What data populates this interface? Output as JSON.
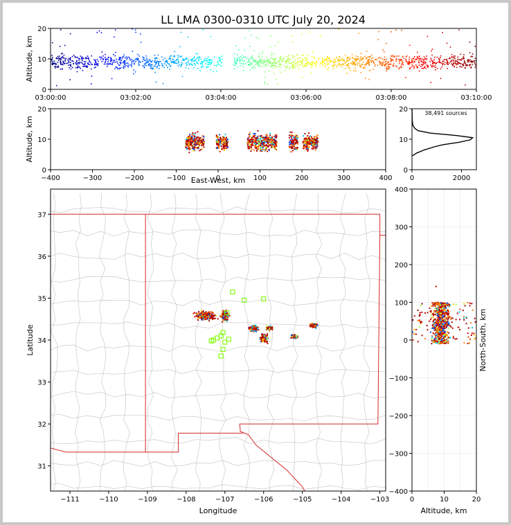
{
  "title": "LL LMA 0300-0310 UTC July 20, 2024",
  "panels": {
    "time_height": {
      "ylabel": "Altitude, km",
      "x_ticks": [
        "03:00:00",
        "03:02:00",
        "03:04:00",
        "03:06:00",
        "03:08:00",
        "03:10:00"
      ],
      "y_ticks": [
        "0",
        "10",
        "20"
      ]
    },
    "ew_height": {
      "ylabel": "Altitude, km",
      "xlabel": "East-West, km",
      "x_ticks": [
        "−400",
        "−300",
        "−200",
        "−100",
        "0",
        "100",
        "200",
        "300",
        "400"
      ],
      "y_ticks": [
        "0",
        "10",
        "20"
      ]
    },
    "histogram": {
      "annotation": "38,491 sources",
      "x_ticks": [
        "0",
        "2000"
      ],
      "y_ticks": [
        "0",
        "10",
        "20"
      ]
    },
    "plan": {
      "xlabel": "Longitude",
      "ylabel": "Latitude",
      "x_ticks": [
        "−111",
        "−110",
        "−109",
        "−108",
        "−107",
        "−106",
        "−105",
        "−104",
        "−103"
      ],
      "y_ticks": [
        "31",
        "32",
        "33",
        "34",
        "35",
        "36",
        "37"
      ]
    },
    "ns_height": {
      "xlabel": "Altitude, km",
      "ylabel": "North-South, km",
      "x_ticks": [
        "0",
        "10",
        "20"
      ],
      "y_ticks": [
        "−400",
        "−300",
        "−200",
        "−100",
        "0",
        "100",
        "200",
        "300",
        "400"
      ]
    }
  },
  "colors": {
    "state_border": "#d62728",
    "county_lines": "#c0c0c0",
    "station_marker": "#7cfc00"
  },
  "chart_data": [
    {
      "type": "scatter",
      "panel": "time_height",
      "x_range": [
        "03:00:00",
        "03:10:00"
      ],
      "ylim": [
        0,
        20
      ],
      "color_by": "time",
      "colormap": "jet",
      "altitude_band_km": [
        5,
        14
      ],
      "core_altitude_km": 9
    },
    {
      "type": "scatter",
      "panel": "ew_height",
      "xlim": [
        -400,
        400
      ],
      "ylim": [
        0,
        20
      ],
      "clusters": [
        {
          "x_center": -55,
          "x_spread": 22
        },
        {
          "x_center": 10,
          "x_spread": 14
        },
        {
          "x_center": 105,
          "x_spread": 35
        },
        {
          "x_center": 180,
          "x_spread": 10
        },
        {
          "x_center": 220,
          "x_spread": 18
        }
      ]
    },
    {
      "type": "line",
      "panel": "histogram",
      "xlim": [
        0,
        2600
      ],
      "ylim": [
        0,
        20
      ],
      "altitude_km": [
        4.5,
        5.5,
        6.5,
        7.5,
        8.2,
        9.0,
        9.8,
        10.5,
        11.2,
        12.0,
        12.8,
        13.5,
        14.5,
        16.0,
        20.0
      ],
      "source_count": [
        0,
        200,
        500,
        900,
        1250,
        1900,
        2350,
        2450,
        1800,
        750,
        250,
        120,
        40,
        10,
        0
      ]
    },
    {
      "type": "scatter",
      "panel": "plan",
      "xlim": [
        -111.5,
        -102.85
      ],
      "ylim": [
        30.4,
        37.6
      ],
      "clusters": [
        {
          "lon": -107.5,
          "lat": 34.58,
          "d_lon": 0.3,
          "d_lat": 0.12
        },
        {
          "lon": -107.0,
          "lat": 34.58,
          "d_lon": 0.12,
          "d_lat": 0.15
        },
        {
          "lon": -106.25,
          "lat": 34.28,
          "d_lon": 0.14,
          "d_lat": 0.1
        },
        {
          "lon": -106.0,
          "lat": 34.05,
          "d_lon": 0.12,
          "d_lat": 0.12
        },
        {
          "lon": -105.85,
          "lat": 34.28,
          "d_lon": 0.1,
          "d_lat": 0.06
        },
        {
          "lon": -105.2,
          "lat": 34.08,
          "d_lon": 0.1,
          "d_lat": 0.05
        },
        {
          "lon": -104.7,
          "lat": 34.35,
          "d_lon": 0.12,
          "d_lat": 0.07
        }
      ],
      "stations": [
        {
          "lon": -106.5,
          "lat": 34.95
        },
        {
          "lon": -106.0,
          "lat": 34.98
        },
        {
          "lon": -106.8,
          "lat": 35.15
        },
        {
          "lon": -107.3,
          "lat": 34.0
        },
        {
          "lon": -107.2,
          "lat": 34.05
        },
        {
          "lon": -107.1,
          "lat": 34.1
        },
        {
          "lon": -107.05,
          "lat": 34.18
        },
        {
          "lon": -107.0,
          "lat": 33.95
        },
        {
          "lon": -106.9,
          "lat": 34.02
        },
        {
          "lon": -107.05,
          "lat": 33.78
        },
        {
          "lon": -107.1,
          "lat": 33.62
        },
        {
          "lon": -106.95,
          "lat": 34.65
        },
        {
          "lon": -107.35,
          "lat": 33.98
        }
      ]
    },
    {
      "type": "scatter",
      "panel": "ns_height",
      "xlim": [
        0,
        20
      ],
      "ylim": [
        -400,
        400
      ],
      "altitude_band_km": [
        0,
        20
      ],
      "ns_band_km": [
        -10,
        100
      ]
    }
  ]
}
